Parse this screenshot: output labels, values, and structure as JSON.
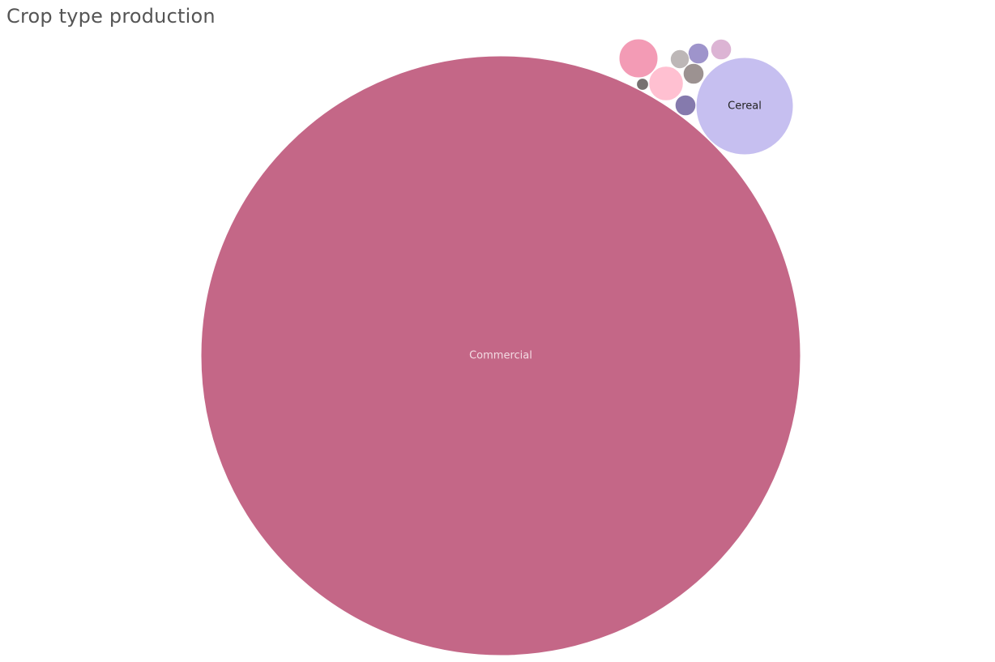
{
  "chart_data": {
    "type": "bubble",
    "title": "Crop type production",
    "series": [
      {
        "name": "Commercial",
        "value": 100,
        "color": "#c46787",
        "label_color": "#f3dbe3",
        "show_label": true
      },
      {
        "name": "Cereal",
        "value": 2.63,
        "color": "#c6bff0",
        "label_color": "#222222",
        "show_label": true
      },
      {
        "name": "",
        "value": 0.42,
        "color": "#f39bb5",
        "show_label": false
      },
      {
        "name": "",
        "value": 0.33,
        "color": "#ffc0d1",
        "show_label": false
      },
      {
        "name": "",
        "value": 0.12,
        "color": "#dcb4d4",
        "show_label": false
      },
      {
        "name": "",
        "value": 0.12,
        "color": "#9e94cb",
        "show_label": false
      },
      {
        "name": "",
        "value": 0.12,
        "color": "#9c9291",
        "show_label": false
      },
      {
        "name": "",
        "value": 0.12,
        "color": "#857aad",
        "show_label": false
      },
      {
        "name": "",
        "value": 0.1,
        "color": "#bdb7b7",
        "show_label": false
      },
      {
        "name": "",
        "value": 0.04,
        "color": "#777170",
        "show_label": false
      }
    ]
  }
}
